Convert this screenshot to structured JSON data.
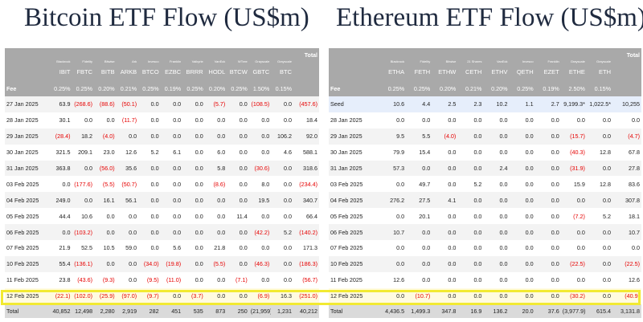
{
  "btc": {
    "title": "Bitcoin ETF Flow (US$m)",
    "issuers": [
      "Blackrock",
      "Fidelity",
      "Bitwise",
      "Ark",
      "Invesco",
      "Franklin",
      "Valkyrie",
      "VanEck",
      "WTree",
      "Grayscale",
      "Grayscale",
      "Total"
    ],
    "tickers": [
      "IBIT",
      "FBTC",
      "BITB",
      "ARKB",
      "BTCO",
      "EZBC",
      "BRRR",
      "HODL",
      "BTCW",
      "GBTC",
      "BTC",
      ""
    ],
    "fee_label": "Fee",
    "fees": [
      "0.25%",
      "0.25%",
      "0.20%",
      "0.21%",
      "0.25%",
      "0.19%",
      "0.25%",
      "0.20%",
      "0.25%",
      "1.50%",
      "0.15%",
      ""
    ],
    "rows": [
      {
        "date": "27 Jan 2025",
        "vals": [
          "63.9",
          "(268.6)",
          "(88.6)",
          "(50.1)",
          "0.0",
          "0.0",
          "0.0",
          "(5.7)",
          "0.0",
          "(108.5)",
          "0.0",
          "(457.6)"
        ]
      },
      {
        "date": "28 Jan 2025",
        "vals": [
          "30.1",
          "0.0",
          "0.0",
          "(11.7)",
          "0.0",
          "0.0",
          "0.0",
          "0.0",
          "0.0",
          "0.0",
          "0.0",
          "18.4"
        ]
      },
      {
        "date": "29 Jan 2025",
        "vals": [
          "(28.4)",
          "18.2",
          "(4.0)",
          "0.0",
          "0.0",
          "0.0",
          "0.0",
          "0.0",
          "0.0",
          "0.0",
          "106.2",
          "92.0"
        ]
      },
      {
        "date": "30 Jan 2025",
        "vals": [
          "321.5",
          "209.1",
          "23.0",
          "12.6",
          "5.2",
          "6.1",
          "0.0",
          "6.0",
          "0.0",
          "0.0",
          "4.6",
          "588.1"
        ]
      },
      {
        "date": "31 Jan 2025",
        "vals": [
          "363.8",
          "0.0",
          "(56.0)",
          "35.6",
          "0.0",
          "0.0",
          "0.0",
          "5.8",
          "0.0",
          "(30.6)",
          "0.0",
          "318.6"
        ]
      },
      {
        "date": "03 Feb 2025",
        "vals": [
          "0.0",
          "(177.6)",
          "(5.5)",
          "(50.7)",
          "0.0",
          "0.0",
          "0.0",
          "(8.6)",
          "0.0",
          "8.0",
          "0.0",
          "(234.4)"
        ]
      },
      {
        "date": "04 Feb 2025",
        "vals": [
          "249.0",
          "0.0",
          "16.1",
          "56.1",
          "0.0",
          "0.0",
          "0.0",
          "0.0",
          "0.0",
          "19.5",
          "0.0",
          "340.7"
        ]
      },
      {
        "date": "05 Feb 2025",
        "vals": [
          "44.4",
          "10.6",
          "0.0",
          "0.0",
          "0.0",
          "0.0",
          "0.0",
          "0.0",
          "11.4",
          "0.0",
          "0.0",
          "66.4"
        ]
      },
      {
        "date": "06 Feb 2025",
        "vals": [
          "0.0",
          "(103.2)",
          "0.0",
          "0.0",
          "0.0",
          "0.0",
          "0.0",
          "0.0",
          "0.0",
          "(42.2)",
          "5.2",
          "(140.2)"
        ]
      },
      {
        "date": "07 Feb 2025",
        "vals": [
          "21.9",
          "52.5",
          "10.5",
          "59.0",
          "0.0",
          "5.6",
          "0.0",
          "21.8",
          "0.0",
          "0.0",
          "0.0",
          "171.3"
        ]
      },
      {
        "date": "10 Feb 2025",
        "vals": [
          "55.4",
          "(136.1)",
          "0.0",
          "0.0",
          "(34.0)",
          "(19.8)",
          "0.0",
          "(5.5)",
          "0.0",
          "(46.3)",
          "0.0",
          "(186.3)"
        ]
      },
      {
        "date": "11 Feb 2025",
        "vals": [
          "23.8",
          "(43.6)",
          "(9.3)",
          "0.0",
          "(9.5)",
          "(11.0)",
          "0.0",
          "0.0",
          "(7.1)",
          "0.0",
          "0.0",
          "(56.7)"
        ]
      },
      {
        "date": "12 Feb 2025",
        "vals": [
          "(22.1)",
          "(102.0)",
          "(25.9)",
          "(97.0)",
          "(9.7)",
          "0.0",
          "(3.7)",
          "0.0",
          "0.0",
          "(6.9)",
          "16.3",
          "(251.0)"
        ]
      }
    ],
    "total_label": "Total",
    "totals": [
      "40,852",
      "12,498",
      "2,280",
      "2,919",
      "282",
      "451",
      "535",
      "873",
      "250",
      "(21,959)",
      "1,231",
      "40,212"
    ]
  },
  "eth": {
    "title": "Ethereum ETF Flow (US$m)",
    "issuers": [
      "Blackrock",
      "Fidelity",
      "Bitwise",
      "21 Shares",
      "VanEck",
      "Invesco",
      "Franklin",
      "Grayscale",
      "Grayscale",
      "Total"
    ],
    "tickers": [
      "ETHA",
      "FETH",
      "ETHW",
      "CETH",
      "ETHV",
      "QETH",
      "EZET",
      "ETHE",
      "ETH",
      ""
    ],
    "fee_label": "Fee",
    "fees": [
      "0.25%",
      "0.25%",
      "0.20%",
      "0.21%",
      "0.20%",
      "0.25%",
      "0.19%",
      "2.50%",
      "0.15%",
      ""
    ],
    "rows": [
      {
        "date": "Seed",
        "vals": [
          "10.6",
          "4.4",
          "2.5",
          "2.3",
          "10.2",
          "1.1",
          "2.7",
          "9,199.3*",
          "1,022.5*",
          "10,255"
        ]
      },
      {
        "date": "28 Jan 2025",
        "vals": [
          "0.0",
          "0.0",
          "0.0",
          "0.0",
          "0.0",
          "0.0",
          "0.0",
          "0.0",
          "0.0",
          "0.0"
        ]
      },
      {
        "date": "29 Jan 2025",
        "vals": [
          "9.5",
          "5.5",
          "(4.0)",
          "0.0",
          "0.0",
          "0.0",
          "0.0",
          "(15.7)",
          "0.0",
          "(4.7)"
        ]
      },
      {
        "date": "30 Jan 2025",
        "vals": [
          "79.9",
          "15.4",
          "0.0",
          "0.0",
          "0.0",
          "0.0",
          "0.0",
          "(40.3)",
          "12.8",
          "67.8"
        ]
      },
      {
        "date": "31 Jan 2025",
        "vals": [
          "57.3",
          "0.0",
          "0.0",
          "0.0",
          "2.4",
          "0.0",
          "0.0",
          "(31.9)",
          "0.0",
          "27.8"
        ]
      },
      {
        "date": "03 Feb 2025",
        "vals": [
          "0.0",
          "49.7",
          "0.0",
          "5.2",
          "0.0",
          "0.0",
          "0.0",
          "15.9",
          "12.8",
          "83.6"
        ]
      },
      {
        "date": "04 Feb 2025",
        "vals": [
          "276.2",
          "27.5",
          "4.1",
          "0.0",
          "0.0",
          "0.0",
          "0.0",
          "0.0",
          "0.0",
          "307.8"
        ]
      },
      {
        "date": "05 Feb 2025",
        "vals": [
          "0.0",
          "20.1",
          "0.0",
          "0.0",
          "0.0",
          "0.0",
          "0.0",
          "(7.2)",
          "5.2",
          "18.1"
        ]
      },
      {
        "date": "06 Feb 2025",
        "vals": [
          "10.7",
          "0.0",
          "0.0",
          "0.0",
          "0.0",
          "0.0",
          "0.0",
          "0.0",
          "0.0",
          "10.7"
        ]
      },
      {
        "date": "07 Feb 2025",
        "vals": [
          "0.0",
          "0.0",
          "0.0",
          "0.0",
          "0.0",
          "0.0",
          "0.0",
          "0.0",
          "0.0",
          "0.0"
        ]
      },
      {
        "date": "10 Feb 2025",
        "vals": [
          "0.0",
          "0.0",
          "0.0",
          "0.0",
          "0.0",
          "0.0",
          "0.0",
          "(22.5)",
          "0.0",
          "(22.5)"
        ]
      },
      {
        "date": "11 Feb 2025",
        "vals": [
          "12.6",
          "0.0",
          "0.0",
          "0.0",
          "0.0",
          "0.0",
          "0.0",
          "0.0",
          "0.0",
          "12.6"
        ]
      },
      {
        "date": "12 Feb 2025",
        "vals": [
          "0.0",
          "(10.7)",
          "0.0",
          "0.0",
          "0.0",
          "0.0",
          "0.0",
          "(30.2)",
          "0.0",
          "(40.9)"
        ]
      }
    ],
    "total_label": "Total",
    "totals": [
      "4,436.5",
      "1,499.3",
      "347.8",
      "16.9",
      "136.2",
      "20.0",
      "37.6",
      "(3,977.9)",
      "615.4",
      "3,131.8"
    ]
  },
  "highlight_row": "12 Feb 2025",
  "colors": {
    "header_gray": "#a9a9a9",
    "negative": "#e60000",
    "highlight_border": "#f2ea32",
    "title": "#1f2a3f"
  }
}
